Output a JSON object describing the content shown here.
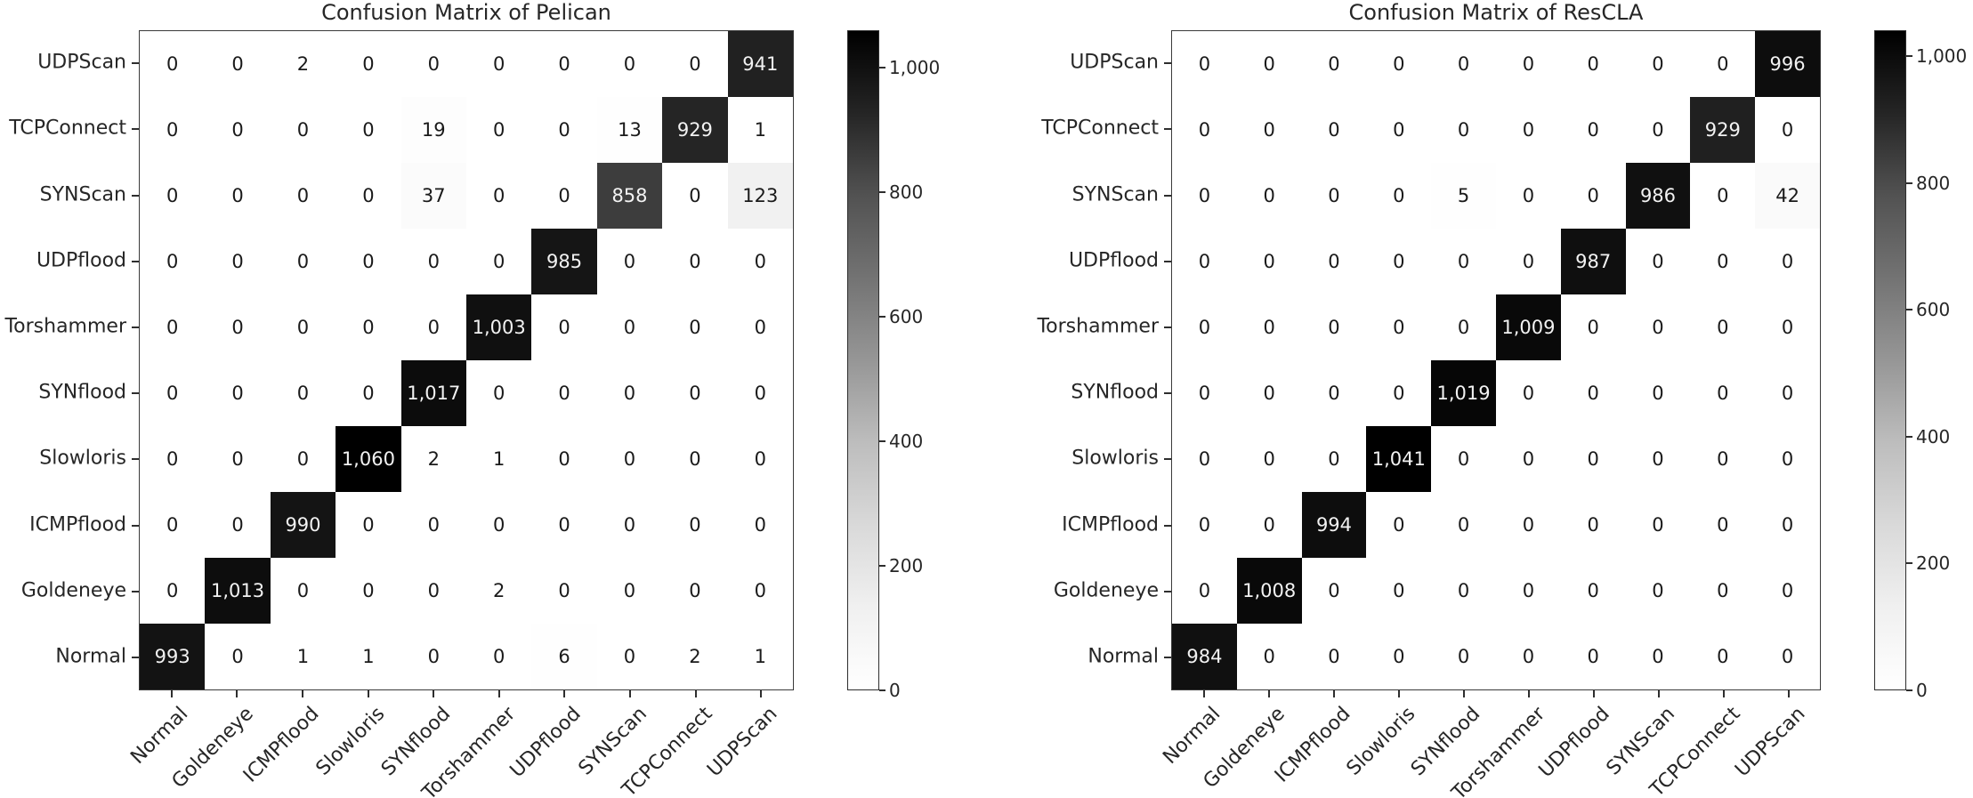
{
  "chart_data": [
    {
      "type": "heatmap",
      "title": "Confusion Matrix of Pelican",
      "colormap": "Greys",
      "x_labels": [
        "Normal",
        "Goldeneye",
        "ICMPflood",
        "Slowloris",
        "SYNflood",
        "Torshammer",
        "UDPflood",
        "SYNScan",
        "TCPConnect",
        "UDPScan"
      ],
      "y_labels": [
        "UDPScan",
        "TCPConnect",
        "SYNScan",
        "UDPflood",
        "Torshammer",
        "SYNflood",
        "Slowloris",
        "ICMPflood",
        "Goldeneye",
        "Normal"
      ],
      "matrix": [
        [
          0,
          0,
          2,
          0,
          0,
          0,
          0,
          0,
          0,
          941
        ],
        [
          0,
          0,
          0,
          0,
          19,
          0,
          0,
          13,
          929,
          1
        ],
        [
          0,
          0,
          0,
          0,
          37,
          0,
          0,
          858,
          0,
          123
        ],
        [
          0,
          0,
          0,
          0,
          0,
          0,
          985,
          0,
          0,
          0
        ],
        [
          0,
          0,
          0,
          0,
          0,
          1003,
          0,
          0,
          0,
          0
        ],
        [
          0,
          0,
          0,
          0,
          1017,
          0,
          0,
          0,
          0,
          0
        ],
        [
          0,
          0,
          0,
          1060,
          2,
          1,
          0,
          0,
          0,
          0
        ],
        [
          0,
          0,
          990,
          0,
          0,
          0,
          0,
          0,
          0,
          0
        ],
        [
          0,
          1013,
          0,
          0,
          0,
          2,
          0,
          0,
          0,
          0
        ],
        [
          993,
          0,
          1,
          1,
          0,
          0,
          6,
          0,
          2,
          1
        ]
      ],
      "vmin": 0,
      "vmax": 1060,
      "colorbar_ticks": [
        1000,
        800,
        600,
        400,
        200,
        0
      ]
    },
    {
      "type": "heatmap",
      "title": "Confusion Matrix of ResCLA",
      "colormap": "Greys",
      "x_labels": [
        "Normal",
        "Goldeneye",
        "ICMPflood",
        "Slowloris",
        "SYNflood",
        "Torshammer",
        "UDPflood",
        "SYNScan",
        "TCPConnect",
        "UDPScan"
      ],
      "y_labels": [
        "UDPScan",
        "TCPConnect",
        "SYNScan",
        "UDPflood",
        "Torshammer",
        "SYNflood",
        "Slowloris",
        "ICMPflood",
        "Goldeneye",
        "Normal"
      ],
      "matrix": [
        [
          0,
          0,
          0,
          0,
          0,
          0,
          0,
          0,
          0,
          996
        ],
        [
          0,
          0,
          0,
          0,
          0,
          0,
          0,
          0,
          929,
          0
        ],
        [
          0,
          0,
          0,
          0,
          5,
          0,
          0,
          986,
          0,
          42
        ],
        [
          0,
          0,
          0,
          0,
          0,
          0,
          987,
          0,
          0,
          0
        ],
        [
          0,
          0,
          0,
          0,
          0,
          1009,
          0,
          0,
          0,
          0
        ],
        [
          0,
          0,
          0,
          0,
          1019,
          0,
          0,
          0,
          0,
          0
        ],
        [
          0,
          0,
          0,
          1041,
          0,
          0,
          0,
          0,
          0,
          0
        ],
        [
          0,
          0,
          994,
          0,
          0,
          0,
          0,
          0,
          0,
          0
        ],
        [
          0,
          1008,
          0,
          0,
          0,
          0,
          0,
          0,
          0,
          0
        ],
        [
          984,
          0,
          0,
          0,
          0,
          0,
          0,
          0,
          0,
          0
        ]
      ],
      "vmin": 0,
      "vmax": 1041,
      "colorbar_ticks": [
        1000,
        800,
        600,
        400,
        200,
        0
      ]
    }
  ],
  "colors": {
    "cell_text_dark": "#1a1a1a",
    "cell_text_light": "#f2f2f2",
    "spine": "#3a3a3a"
  }
}
